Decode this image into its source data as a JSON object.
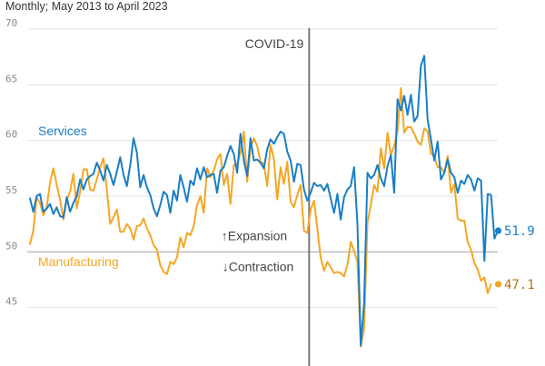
{
  "chart_data": {
    "type": "line",
    "subtitle": "Monthly; May 2013 to April 2023",
    "x_start": "2013-05",
    "x_end": "2023-04",
    "ylim": [
      40,
      70
    ],
    "yticks": [
      45,
      50,
      55,
      60,
      65,
      70
    ],
    "yticks_display": [
      "45",
      "50",
      "55",
      "60",
      "65",
      "70"
    ],
    "grid": "horizontal",
    "reference_line": {
      "value": 50,
      "above_label": "↑Expansion",
      "below_label": "↓Contraction"
    },
    "event_marker": {
      "date": "2020-04",
      "label": "COVID-19"
    },
    "series": [
      {
        "name": "Services",
        "color": "#1a7ec7",
        "end_label": "51.9",
        "values": [
          54.8,
          53.6,
          55.0,
          55.2,
          53.6,
          53.9,
          54.3,
          53.4,
          54.0,
          53.2,
          53.1,
          54.9,
          53.6,
          54.4,
          55.0,
          56.5,
          55.6,
          56.5,
          56.8,
          57.0,
          58.0,
          57.3,
          56.4,
          57.8,
          57.0,
          56.0,
          57.2,
          58.5,
          56.9,
          55.9,
          57.8,
          60.2,
          58.9,
          55.8,
          56.9,
          55.8,
          55.1,
          53.9,
          53.2,
          54.2,
          55.4,
          55.1,
          53.5,
          55.5,
          54.6,
          56.9,
          55.8,
          54.5,
          56.4,
          56.0,
          57.5,
          56.5,
          57.6,
          56.7,
          56.9,
          57.0,
          55.3,
          57.3,
          57.6,
          58.6,
          59.5,
          58.8,
          57.1,
          60.6,
          58.2,
          56.8,
          60.2,
          58.2,
          58.3,
          58.0,
          57.5,
          59.2,
          60.1,
          59.7,
          60.3,
          60.8,
          60.6,
          59.0,
          58.2,
          56.3,
          57.9,
          57.8,
          55.6,
          54.6,
          55.3,
          56.2,
          55.9,
          56.0,
          55.5,
          56.1,
          54.8,
          53.5,
          55.2,
          52.9,
          54.9,
          55.6,
          55.9,
          57.6,
          52.5,
          41.6,
          45.4,
          57.1,
          56.6,
          56.9,
          57.8,
          56.6,
          55.9,
          57.7,
          58.7,
          55.3,
          63.7,
          62.7,
          64.0,
          62.3,
          64.1,
          61.7,
          62.2,
          66.7,
          67.6,
          61.9,
          60.1,
          58.2,
          59.9,
          56.5,
          57.1,
          58.3,
          57.1,
          56.7,
          55.3,
          56.4,
          56.1,
          56.9,
          56.5,
          55.5,
          56.6,
          56.4,
          49.2,
          55.2,
          55.1,
          51.2,
          51.9
        ]
      },
      {
        "name": "Manufacturing",
        "color": "#f5a623",
        "end_label": "47.1",
        "values": [
          50.7,
          51.9,
          54.9,
          54.4,
          53.3,
          54.0,
          56.2,
          57.5,
          56.0,
          54.7,
          52.9,
          54.7,
          55.4,
          57.0,
          53.9,
          55.4,
          57.4,
          57.4,
          55.6,
          55.5,
          56.5,
          57.6,
          58.4,
          55.6,
          52.5,
          53.1,
          53.8,
          51.8,
          51.8,
          52.5,
          52.1,
          51.1,
          52.3,
          52.4,
          53.0,
          52.1,
          51.5,
          50.6,
          50.2,
          48.8,
          48.2,
          48.0,
          49.1,
          48.9,
          49.5,
          51.3,
          50.4,
          51.7,
          51.5,
          52.3,
          54.2,
          55.0,
          53.5,
          57.5,
          56.7,
          57.3,
          58.3,
          58.8,
          56.0,
          57.0,
          54.3,
          57.8,
          57.8,
          58.9,
          60.8,
          56.3,
          59.3,
          60.2,
          59.5,
          58.1,
          57.9,
          55.9,
          59.6,
          58.3,
          54.7,
          57.6,
          56.1,
          58.1,
          54.5,
          54.0,
          55.1,
          56.0,
          51.9,
          51.7,
          53.8,
          54.6,
          52.1,
          49.5,
          48.3,
          49.1,
          48.6,
          48.1,
          48.2,
          48.1,
          47.8,
          48.8,
          50.9,
          50.1,
          49.1,
          41.5,
          43.1,
          52.6,
          54.2,
          56.0,
          55.4,
          59.3,
          57.5,
          60.7,
          58.7,
          59.5,
          60.8,
          64.7,
          60.7,
          61.2,
          61.2,
          60.6,
          59.9,
          59.6,
          61.1,
          60.8,
          58.8,
          58.6,
          57.6,
          57.6,
          57.1,
          58.6,
          55.3,
          56.1,
          53.0,
          52.8,
          52.8,
          50.9,
          50.2,
          49.0,
          48.4,
          47.4,
          47.7,
          46.3,
          47.1
        ]
      }
    ]
  }
}
